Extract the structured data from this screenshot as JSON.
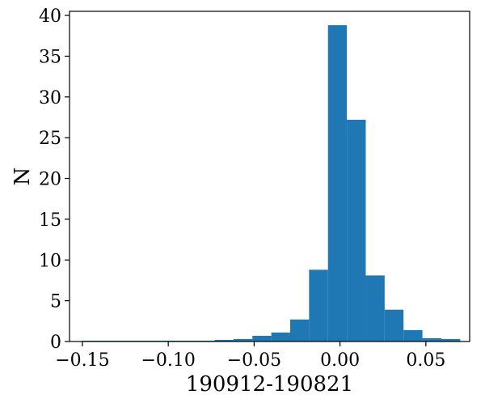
{
  "chart_data": {
    "type": "bar",
    "title": "",
    "xlabel": "190912-190821",
    "ylabel": "N",
    "xlim": [
      -0.1575,
      0.0755
    ],
    "ylim": [
      0,
      40.5
    ],
    "bin_edges": [
      -0.15,
      -0.139,
      -0.128,
      -0.117,
      -0.106,
      -0.095,
      -0.084,
      -0.073,
      -0.062,
      -0.051,
      -0.04,
      -0.029,
      -0.018,
      -0.007,
      0.004,
      0.015,
      0.026,
      0.037,
      0.048,
      0.059,
      0.07
    ],
    "values": [
      0.1,
      0.1,
      0.1,
      0.1,
      0.1,
      0.1,
      0.1,
      0.2,
      0.3,
      0.7,
      1.1,
      2.7,
      8.8,
      38.8,
      27.2,
      8.1,
      3.9,
      1.4,
      0.4,
      0.3
    ],
    "x_ticks": [
      {
        "value": -0.15,
        "label": "−0.15"
      },
      {
        "value": -0.1,
        "label": "−0.10"
      },
      {
        "value": -0.05,
        "label": "−0.05"
      },
      {
        "value": 0.0,
        "label": "0.00"
      },
      {
        "value": 0.05,
        "label": "0.05"
      }
    ],
    "y_ticks": [
      {
        "value": 0,
        "label": "0"
      },
      {
        "value": 5,
        "label": "5"
      },
      {
        "value": 10,
        "label": "10"
      },
      {
        "value": 15,
        "label": "15"
      },
      {
        "value": 20,
        "label": "20"
      },
      {
        "value": 25,
        "label": "25"
      },
      {
        "value": 30,
        "label": "30"
      },
      {
        "value": 35,
        "label": "35"
      },
      {
        "value": 40,
        "label": "40"
      }
    ],
    "bar_color": "#1f77b4",
    "grid": false,
    "legend": "none"
  }
}
